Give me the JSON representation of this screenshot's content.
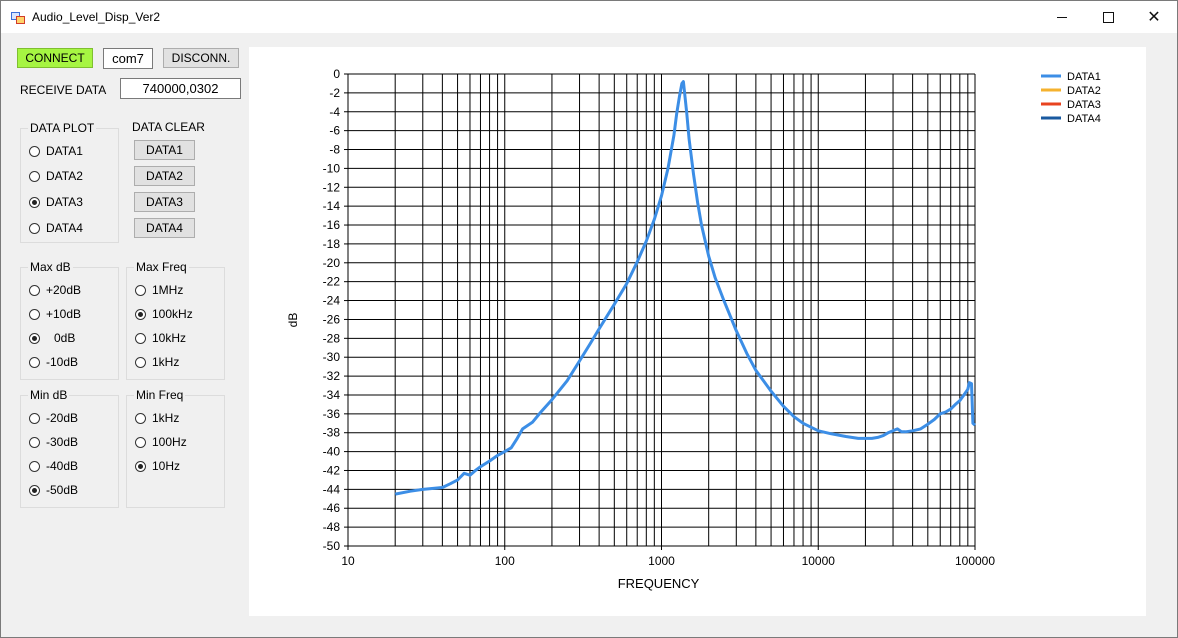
{
  "window": {
    "title": "Audio_Level_Disp_Ver2"
  },
  "connection": {
    "connect_label": "CONNECT",
    "port_value": "com7",
    "disconnect_label": "DISCONN.",
    "receive_label": "RECEIVE DATA",
    "receive_value": "740000,0302"
  },
  "data_plot": {
    "title": "DATA PLOT",
    "options": [
      "DATA1",
      "DATA2",
      "DATA3",
      "DATA4"
    ],
    "selected": 2
  },
  "data_clear": {
    "title": "DATA CLEAR",
    "buttons": [
      "DATA1",
      "DATA2",
      "DATA3",
      "DATA4"
    ]
  },
  "max_db": {
    "title": "Max dB",
    "options": [
      "+20dB",
      "+10dB",
      "0dB",
      "-10dB"
    ],
    "selected": 2
  },
  "max_freq": {
    "title": "Max Freq",
    "options": [
      "1MHz",
      "100kHz",
      "10kHz",
      "1kHz"
    ],
    "selected": 1
  },
  "min_db": {
    "title": "Min dB",
    "options": [
      "-20dB",
      "-30dB",
      "-40dB",
      "-50dB"
    ],
    "selected": 3
  },
  "min_freq": {
    "title": "Min Freq",
    "options": [
      "1kHz",
      "100Hz",
      "10Hz"
    ],
    "selected": 2
  },
  "colors": {
    "connect_green": "#a6f542",
    "data1": "#3c8ee6",
    "data2": "#f5b22e",
    "data3": "#e8431f",
    "data4": "#1a5aa0"
  },
  "chart_data": {
    "type": "line",
    "x_scale": "log",
    "xlim": [
      10,
      100000
    ],
    "ylim": [
      -50,
      0
    ],
    "grid": true,
    "legend_position": "top-right",
    "xlabel": "FREQUENCY",
    "ylabel": "dB",
    "x_ticks": [
      "10",
      "100",
      "1000",
      "10000",
      "100000"
    ],
    "y_ticks": [
      "0",
      "-2",
      "-4",
      "-6",
      "-8",
      "-10",
      "-12",
      "-14",
      "-16",
      "-18",
      "-20",
      "-22",
      "-24",
      "-26",
      "-28",
      "-30",
      "-32",
      "-34",
      "-36",
      "-38",
      "-40",
      "-42",
      "-44",
      "-46",
      "-48",
      "-50"
    ],
    "legend": [
      "DATA1",
      "DATA2",
      "DATA3",
      "DATA4"
    ],
    "series": [
      {
        "name": "DATA1",
        "x": [
          20,
          25,
          30,
          35,
          40,
          45,
          50,
          55,
          60,
          65,
          70,
          80,
          90,
          100,
          110,
          120,
          130,
          150,
          170,
          200,
          250,
          300,
          350,
          400,
          500,
          600,
          700,
          800,
          900,
          1000,
          1100,
          1200,
          1250,
          1300,
          1350,
          1380,
          1400,
          1450,
          1500,
          1600,
          1700,
          1800,
          2000,
          2200,
          2500,
          3000,
          3500,
          4000,
          5000,
          6000,
          7000,
          8000,
          10000,
          12000,
          15000,
          18000,
          20000,
          22000,
          24000,
          26000,
          28000,
          30000,
          32000,
          34000,
          36000,
          40000,
          45000,
          50000,
          55000,
          60000,
          65000,
          70000,
          75000,
          80000,
          85000,
          90000,
          92000,
          95000,
          97000,
          100000
        ],
        "y": [
          -44.5,
          -44.2,
          -44.0,
          -43.9,
          -43.8,
          -43.4,
          -43.0,
          -42.3,
          -42.5,
          -42.0,
          -41.6,
          -41.0,
          -40.4,
          -40.0,
          -39.6,
          -38.6,
          -37.6,
          -36.9,
          -35.8,
          -34.5,
          -32.5,
          -30.4,
          -28.6,
          -27.0,
          -24.4,
          -22.2,
          -19.9,
          -17.7,
          -15.4,
          -12.9,
          -10.0,
          -6.5,
          -4.2,
          -2.4,
          -1.0,
          -0.8,
          -1.8,
          -4.2,
          -6.9,
          -10.6,
          -13.6,
          -16.0,
          -19.3,
          -21.6,
          -24.0,
          -27.2,
          -29.6,
          -31.4,
          -33.6,
          -35.2,
          -36.3,
          -37.0,
          -37.8,
          -38.1,
          -38.4,
          -38.6,
          -38.6,
          -38.6,
          -38.5,
          -38.3,
          -38.0,
          -37.8,
          -37.6,
          -37.9,
          -37.9,
          -37.8,
          -37.6,
          -37.1,
          -36.6,
          -36.0,
          -35.8,
          -35.5,
          -35.0,
          -34.6,
          -34.0,
          -33.4,
          -32.7,
          -32.8,
          -37.0,
          -37.2
        ]
      }
    ]
  }
}
